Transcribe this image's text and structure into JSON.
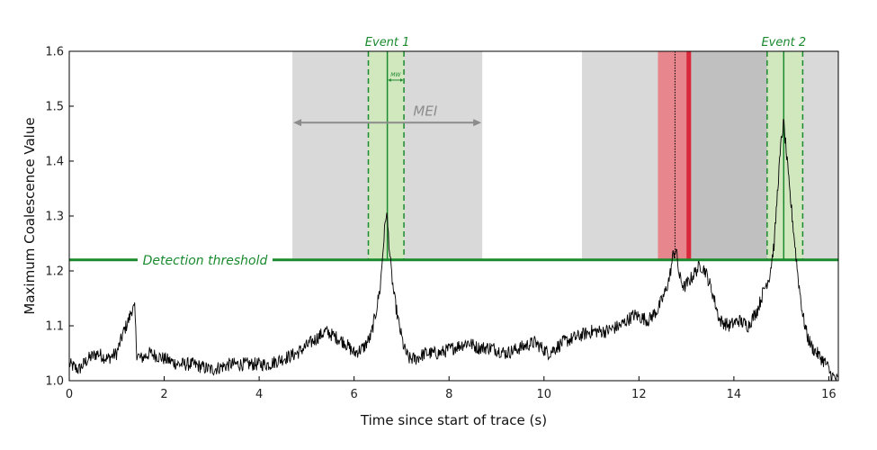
{
  "chart_data": {
    "type": "line",
    "title": "",
    "xlabel": "Time since start of trace (s)",
    "ylabel": "Maximum Coalescence Value",
    "xlim": [
      0,
      16.2
    ],
    "ylim": [
      1.0,
      1.6
    ],
    "xticks": [
      "0",
      "2",
      "4",
      "6",
      "8",
      "10",
      "12",
      "14",
      "16"
    ],
    "yticks": [
      "1.0",
      "1.1",
      "1.2",
      "1.3",
      "1.4",
      "1.5",
      "1.6"
    ],
    "grid": false,
    "threshold": {
      "value": 1.22,
      "label": "Detection threshold",
      "color": "#1a8a2e"
    },
    "mei": {
      "label": "MEI",
      "start": 4.7,
      "end": 8.7,
      "color": "#d9d9d9"
    },
    "second_window": {
      "start": 10.8,
      "end": 16.2,
      "color": "#d9d9d9"
    },
    "dark_region": {
      "start": 13.1,
      "end": 14.7,
      "color": "#c0c0c0"
    },
    "red_region": {
      "start": 12.4,
      "end": 13.1,
      "line_at": 13.05,
      "marker_at": 12.76,
      "color": "#e8868d",
      "line_color": "#d8283a"
    },
    "events": [
      {
        "label": "Event 1",
        "time": 6.7,
        "window": [
          6.3,
          7.05
        ],
        "mw_label": "MW",
        "color": "#1a8a2e",
        "fill": "#cfe9b8"
      },
      {
        "label": "Event 2",
        "time": 15.05,
        "window": [
          14.7,
          15.45
        ],
        "color": "#1a8a2e",
        "fill": "#cfe9b8"
      }
    ],
    "series": [
      {
        "line_color": "#000000",
        "x": [
          0,
          0.2,
          0.4,
          0.6,
          0.8,
          1.0,
          1.15,
          1.25,
          1.32,
          1.38,
          1.42,
          1.5,
          1.7,
          2.0,
          2.3,
          2.6,
          3.0,
          3.4,
          3.8,
          4.2,
          4.5,
          4.8,
          5.1,
          5.4,
          5.6,
          5.8,
          6.0,
          6.2,
          6.35,
          6.45,
          6.55,
          6.62,
          6.68,
          6.72,
          6.78,
          6.85,
          6.95,
          7.05,
          7.15,
          7.3,
          7.5,
          7.8,
          8.1,
          8.4,
          8.6,
          8.9,
          9.2,
          9.5,
          9.8,
          10.1,
          10.4,
          10.7,
          11.0,
          11.3,
          11.6,
          11.9,
          12.2,
          12.4,
          12.55,
          12.65,
          12.72,
          12.78,
          12.85,
          12.95,
          13.05,
          13.2,
          13.3,
          13.4,
          13.55,
          13.7,
          13.9,
          14.1,
          14.3,
          14.5,
          14.65,
          14.75,
          14.85,
          14.93,
          15.0,
          15.05,
          15.1,
          15.17,
          15.25,
          15.35,
          15.45,
          15.55,
          15.65,
          15.75,
          15.85,
          15.95,
          16.05,
          16.2
        ],
        "y": [
          1.03,
          1.02,
          1.04,
          1.05,
          1.04,
          1.05,
          1.09,
          1.11,
          1.13,
          1.13,
          1.05,
          1.04,
          1.05,
          1.04,
          1.03,
          1.03,
          1.02,
          1.03,
          1.03,
          1.03,
          1.04,
          1.05,
          1.07,
          1.09,
          1.08,
          1.07,
          1.05,
          1.06,
          1.08,
          1.12,
          1.17,
          1.25,
          1.31,
          1.27,
          1.2,
          1.15,
          1.1,
          1.06,
          1.04,
          1.04,
          1.05,
          1.05,
          1.06,
          1.07,
          1.06,
          1.06,
          1.05,
          1.06,
          1.07,
          1.05,
          1.07,
          1.08,
          1.09,
          1.09,
          1.1,
          1.12,
          1.11,
          1.13,
          1.16,
          1.19,
          1.23,
          1.24,
          1.19,
          1.17,
          1.18,
          1.2,
          1.21,
          1.2,
          1.16,
          1.11,
          1.1,
          1.11,
          1.1,
          1.13,
          1.17,
          1.19,
          1.25,
          1.36,
          1.44,
          1.47,
          1.42,
          1.35,
          1.28,
          1.19,
          1.12,
          1.08,
          1.06,
          1.05,
          1.04,
          1.03,
          1.01,
          1.0
        ]
      }
    ]
  }
}
